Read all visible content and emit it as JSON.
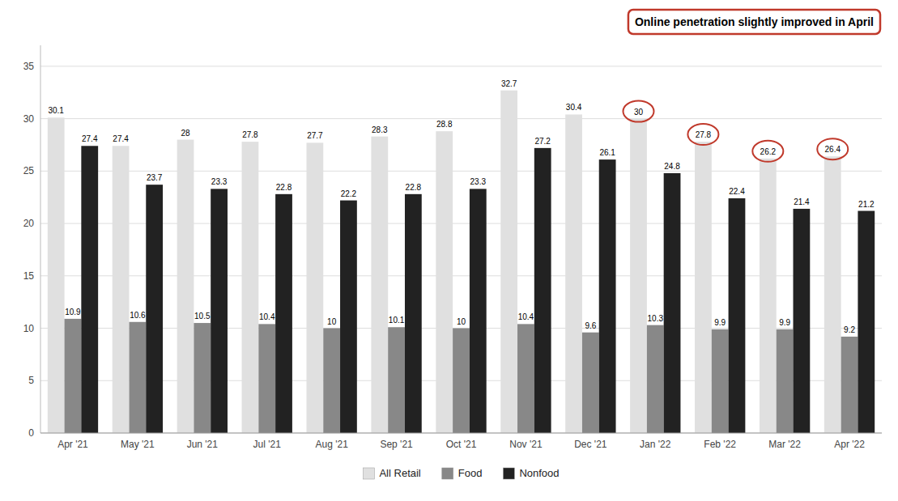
{
  "chart_data": {
    "type": "bar",
    "categories": [
      "Apr '21",
      "May '21",
      "Jun '21",
      "Jul '21",
      "Aug '21",
      "Sep '21",
      "Oct '21",
      "Nov '21",
      "Dec '21",
      "Jan '22",
      "Feb '22",
      "Mar '22",
      "Apr '22"
    ],
    "series": [
      {
        "name": "All Retail",
        "color": "#e0e0e0",
        "values": [
          30.1,
          27.4,
          28.0,
          27.8,
          27.7,
          28.3,
          28.8,
          32.7,
          30.4,
          30.0,
          27.8,
          26.2,
          26.4
        ]
      },
      {
        "name": "Food",
        "color": "#888888",
        "values": [
          10.9,
          10.6,
          10.5,
          10.4,
          10.0,
          10.1,
          10.0,
          10.4,
          9.6,
          10.3,
          9.9,
          9.9,
          9.2
        ]
      },
      {
        "name": "Nonfood",
        "color": "#222222",
        "values": [
          27.4,
          23.7,
          23.3,
          22.8,
          22.2,
          22.8,
          23.3,
          27.2,
          26.1,
          24.8,
          22.4,
          21.4,
          21.2
        ]
      }
    ],
    "annotations": [
      {
        "text": "Online penetration slightly improved in April",
        "color": "#c0392b",
        "categories": [
          "Jan '22",
          "Feb '22",
          "Mar '22",
          "Apr '22"
        ]
      }
    ],
    "ylim": [
      0,
      37
    ],
    "yticks": [
      0,
      5,
      10,
      15,
      20,
      25,
      30,
      35
    ],
    "grid": true,
    "data_labels": true,
    "legend": "bottom"
  }
}
